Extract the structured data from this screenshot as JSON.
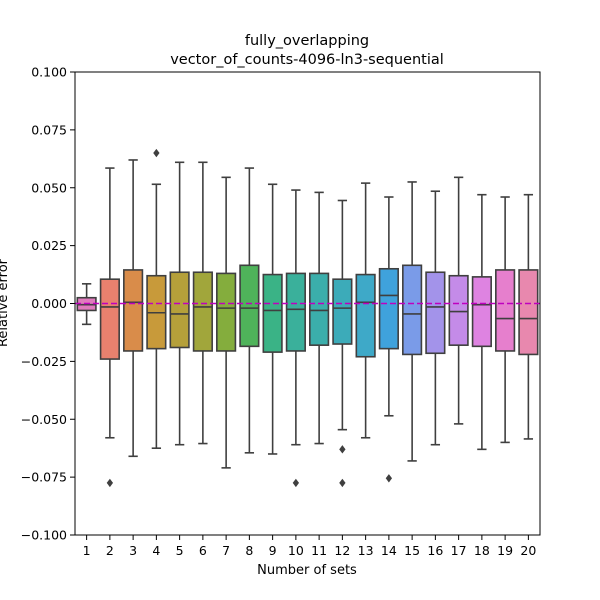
{
  "chart_data": {
    "type": "box",
    "title": [
      "fully_overlapping",
      "vector_of_counts-4096-ln3-sequential"
    ],
    "xlabel": "Number of sets",
    "ylabel": "Relative error",
    "categories": [
      "1",
      "2",
      "3",
      "4",
      "5",
      "6",
      "7",
      "8",
      "9",
      "10",
      "11",
      "12",
      "13",
      "14",
      "15",
      "16",
      "17",
      "18",
      "19",
      "20"
    ],
    "ylim": [
      -0.1,
      0.1
    ],
    "yticks": [
      -0.1,
      -0.075,
      -0.05,
      -0.025,
      0.0,
      0.025,
      0.05,
      0.075,
      0.1
    ],
    "ytick_labels": [
      "−0.100",
      "−0.075",
      "−0.050",
      "−0.025",
      "0.000",
      "0.025",
      "0.050",
      "0.075",
      "0.100"
    ],
    "reference_line": {
      "y": 0.0,
      "style": "dashed",
      "color": "#bf00bf"
    },
    "grid": false,
    "boxes": [
      {
        "category": "1",
        "whislo": -0.009,
        "q1": -0.003,
        "median": -0.0005,
        "q3": 0.0025,
        "whishi": 0.0085,
        "fliers": [],
        "color": "#e07bbd"
      },
      {
        "category": "2",
        "whislo": -0.058,
        "q1": -0.024,
        "median": -0.0015,
        "q3": 0.0105,
        "whishi": 0.0585,
        "fliers": [
          -0.0775
        ],
        "color": "#e8816e"
      },
      {
        "category": "3",
        "whislo": -0.066,
        "q1": -0.0205,
        "median": 0.0005,
        "q3": 0.0145,
        "whishi": 0.062,
        "fliers": [],
        "color": "#d98c4a"
      },
      {
        "category": "4",
        "whislo": -0.0625,
        "q1": -0.0195,
        "median": -0.004,
        "q3": 0.012,
        "whishi": 0.0515,
        "fliers": [
          0.065
        ],
        "color": "#c89a3a"
      },
      {
        "category": "5",
        "whislo": -0.061,
        "q1": -0.019,
        "median": -0.0045,
        "q3": 0.0135,
        "whishi": 0.061,
        "fliers": [],
        "color": "#b5a03a"
      },
      {
        "category": "6",
        "whislo": -0.0605,
        "q1": -0.0205,
        "median": -0.0015,
        "q3": 0.0135,
        "whishi": 0.061,
        "fliers": [],
        "color": "#a1a63b"
      },
      {
        "category": "7",
        "whislo": -0.071,
        "q1": -0.0205,
        "median": -0.002,
        "q3": 0.013,
        "whishi": 0.0545,
        "fliers": [],
        "color": "#84ad3d"
      },
      {
        "category": "8",
        "whislo": -0.0645,
        "q1": -0.0185,
        "median": -0.002,
        "q3": 0.0165,
        "whishi": 0.0585,
        "fliers": [],
        "color": "#4fb35a"
      },
      {
        "category": "9",
        "whislo": -0.065,
        "q1": -0.021,
        "median": -0.003,
        "q3": 0.0125,
        "whishi": 0.0515,
        "fliers": [],
        "color": "#3ab386"
      },
      {
        "category": "10",
        "whislo": -0.061,
        "q1": -0.0205,
        "median": -0.0025,
        "q3": 0.013,
        "whishi": 0.049,
        "fliers": [
          -0.0775
        ],
        "color": "#3ab09b"
      },
      {
        "category": "11",
        "whislo": -0.0605,
        "q1": -0.018,
        "median": -0.003,
        "q3": 0.013,
        "whishi": 0.048,
        "fliers": [],
        "color": "#3baeab"
      },
      {
        "category": "12",
        "whislo": -0.0545,
        "q1": -0.0175,
        "median": -0.002,
        "q3": 0.0105,
        "whishi": 0.0445,
        "fliers": [
          -0.063,
          -0.0775
        ],
        "color": "#3cabb9"
      },
      {
        "category": "13",
        "whislo": -0.058,
        "q1": -0.023,
        "median": 0.0005,
        "q3": 0.0125,
        "whishi": 0.052,
        "fliers": [],
        "color": "#3ea9c8"
      },
      {
        "category": "14",
        "whislo": -0.0485,
        "q1": -0.0195,
        "median": 0.0035,
        "q3": 0.015,
        "whishi": 0.046,
        "fliers": [
          -0.0755
        ],
        "color": "#3fa2dc"
      },
      {
        "category": "15",
        "whislo": -0.068,
        "q1": -0.022,
        "median": -0.0045,
        "q3": 0.0165,
        "whishi": 0.0525,
        "fliers": [],
        "color": "#7a9be8"
      },
      {
        "category": "16",
        "whislo": -0.061,
        "q1": -0.0215,
        "median": -0.0015,
        "q3": 0.0135,
        "whishi": 0.0485,
        "fliers": [],
        "color": "#a393ea"
      },
      {
        "category": "17",
        "whislo": -0.052,
        "q1": -0.018,
        "median": -0.0035,
        "q3": 0.012,
        "whishi": 0.0545,
        "fliers": [],
        "color": "#c48be8"
      },
      {
        "category": "18",
        "whislo": -0.063,
        "q1": -0.0185,
        "median": -0.0005,
        "q3": 0.0115,
        "whishi": 0.047,
        "fliers": [],
        "color": "#de83e1"
      },
      {
        "category": "19",
        "whislo": -0.06,
        "q1": -0.0205,
        "median": -0.0065,
        "q3": 0.0145,
        "whishi": 0.046,
        "fliers": [],
        "color": "#e67fcd"
      },
      {
        "category": "20",
        "whislo": -0.0585,
        "q1": -0.022,
        "median": -0.0065,
        "q3": 0.0145,
        "whishi": 0.047,
        "fliers": [],
        "color": "#e888ae"
      }
    ]
  }
}
